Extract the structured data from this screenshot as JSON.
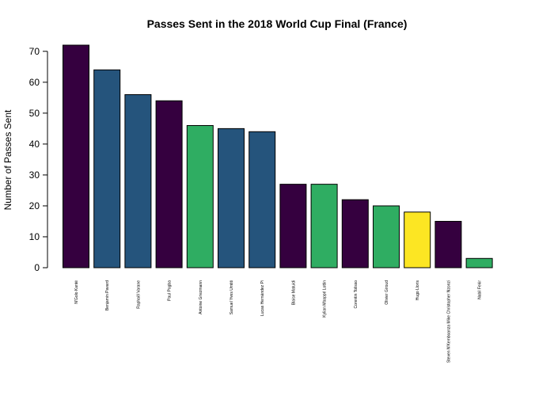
{
  "chart_data": {
    "type": "bar",
    "title": "Passes Sent in the 2018 World Cup Final (France)",
    "xlabel": "",
    "ylabel": "Number of Passes Sent",
    "ylim": [
      0,
      72
    ],
    "yticks": [
      0,
      10,
      20,
      30,
      40,
      50,
      60,
      70
    ],
    "grid": false,
    "categories": [
      "N'Golo Kanté",
      "Benjamin Pavard",
      "Raphaël Varane",
      "Paul Pogba",
      "Antoine Griezmann",
      "Samuel Yves Umtiti",
      "Lucas Hernández Pi",
      "Blaise Matuidi",
      "Kylian Mbappé Lottin",
      "Corentin Tolisso",
      "Olivier Giroud",
      "Hugo Lloris",
      "Steven N'Kemboanza Mike Christopher Nzonzi",
      "Nabil Fekir"
    ],
    "values": [
      72,
      64,
      56,
      54,
      46,
      45,
      44,
      27,
      27,
      22,
      20,
      18,
      15,
      3
    ],
    "colors": [
      "#35003f",
      "#25547c",
      "#25547c",
      "#35003f",
      "#2fad62",
      "#25547c",
      "#25547c",
      "#35003f",
      "#2fad62",
      "#35003f",
      "#2fad62",
      "#fce623",
      "#35003f",
      "#2fad62"
    ]
  }
}
